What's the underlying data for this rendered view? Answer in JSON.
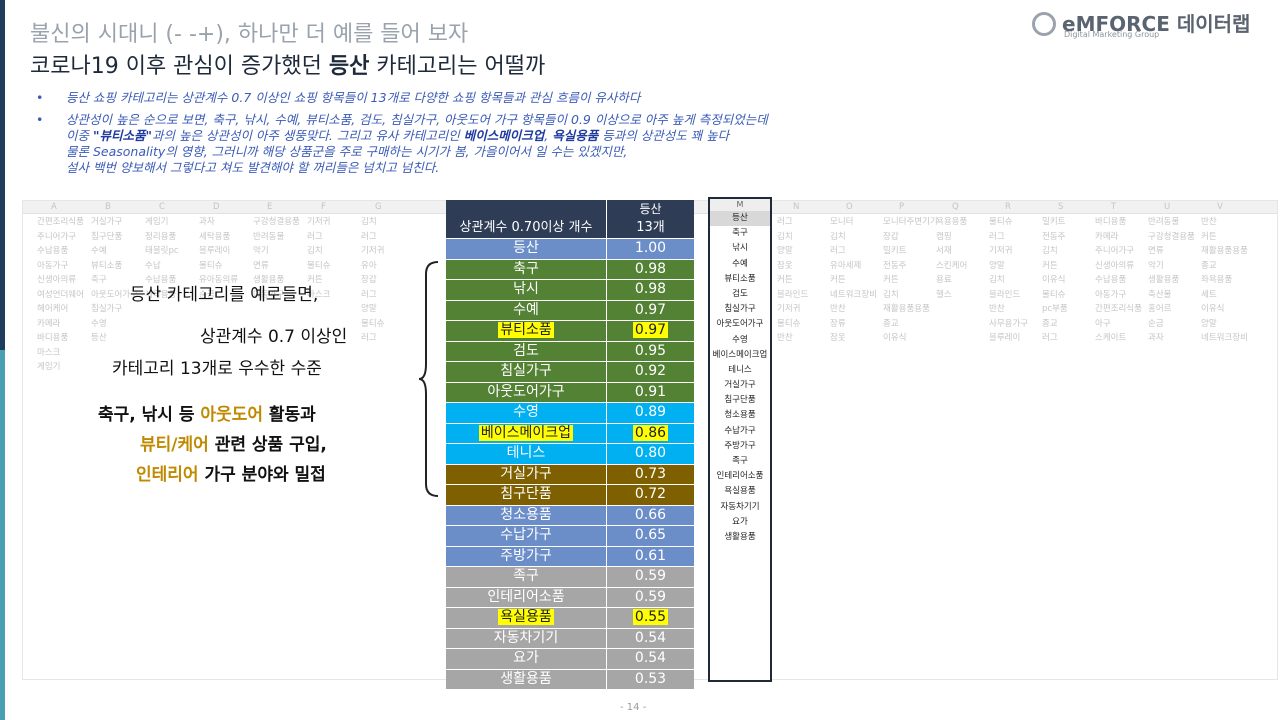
{
  "header": {
    "title_line1": "불신의 시대니 (- -+), 하나만 더 예를 들어 보자",
    "title_line2_pre": "코로나19 이후 관심이 증가했던 ",
    "title_line2_bold": "등산",
    "title_line2_post": " 카테고리는 어떨까"
  },
  "logo": {
    "name": "eMFORCE 데이터랩",
    "sub": "Digital Marketing Group"
  },
  "bullets": {
    "b1": "등산 쇼핑 카테고리는 상관계수 0.7 이상인 쇼핑 항목들이 13개로 다양한 쇼핑 항목들과 관심 흐름이 유사하다",
    "b2_l1": "상관성이 높은 순으로 보면, 축구, 낚시, 수예, 뷰티소품, 검도, 침실가구, 아웃도어 가구 항목들이 0.9 이상으로 아주 높게 측정되었는데",
    "b2_l2_a": "이중 ",
    "b2_l2_b": "\"뷰티소품\"",
    "b2_l2_c": "과의 높은 상관성이 아주 생뚱맞다. 그리고 유사 카테고리인 ",
    "b2_l2_d": "베이스메이크업",
    "b2_l2_e": ", ",
    "b2_l2_f": "욕실용품",
    "b2_l2_g": " 등과의 상관성도 꽤 높다",
    "b2_l3": "물론 Seasonality의 영향, 그러니까 해당 상품군을 주로 구매하는 시기가 봄, 가을이어서 일 수는 있겠지만,",
    "b2_l4": "설사 백번 양보해서 그렇다고 쳐도 발견해야 할 꺼리들은 넘치고 넘친다."
  },
  "callouts": {
    "c1": "등산 카테고리를 예로들면,",
    "c2": "상관계수 0.7 이상인",
    "c3": "카테고리 13개로 우수한 수준",
    "c4_pre": "축구, 낚시 등 ",
    "c4_hl": "아웃도어",
    "c4_post": " 활동과",
    "c5_hl": "뷰티/케어",
    "c5_post": " 관련 상품 구입,",
    "c6_hl": "인테리어",
    "c6_post": " 가구 분야와 밀접"
  },
  "table": {
    "col_header": "등산",
    "count_label": "상관계수 0.70이상 개수",
    "count_value": "13개",
    "rows": [
      {
        "name": "등산",
        "value": "1.00",
        "color": "#6b8ec9",
        "hl": false
      },
      {
        "name": "축구",
        "value": "0.98",
        "color": "#548235",
        "hl": false
      },
      {
        "name": "낚시",
        "value": "0.98",
        "color": "#548235",
        "hl": false
      },
      {
        "name": "수예",
        "value": "0.97",
        "color": "#548235",
        "hl": false
      },
      {
        "name": "뷰티소품",
        "value": "0.97",
        "color": "#548235",
        "hl": true
      },
      {
        "name": "검도",
        "value": "0.95",
        "color": "#548235",
        "hl": false
      },
      {
        "name": "침실가구",
        "value": "0.92",
        "color": "#548235",
        "hl": false
      },
      {
        "name": "아웃도어가구",
        "value": "0.91",
        "color": "#548235",
        "hl": false
      },
      {
        "name": "수영",
        "value": "0.89",
        "color": "#00b0f0",
        "hl": false
      },
      {
        "name": "베이스메이크업",
        "value": "0.86",
        "color": "#00b0f0",
        "hl": true
      },
      {
        "name": "테니스",
        "value": "0.80",
        "color": "#00b0f0",
        "hl": false
      },
      {
        "name": "거실가구",
        "value": "0.73",
        "color": "#7f6000",
        "hl": false
      },
      {
        "name": "침구단품",
        "value": "0.72",
        "color": "#7f6000",
        "hl": false
      },
      {
        "name": "청소용품",
        "value": "0.66",
        "color": "#6b8ec9",
        "hl": false
      },
      {
        "name": "수납가구",
        "value": "0.65",
        "color": "#6b8ec9",
        "hl": false
      },
      {
        "name": "주방가구",
        "value": "0.61",
        "color": "#6b8ec9",
        "hl": false
      },
      {
        "name": "족구",
        "value": "0.59",
        "color": "#a6a6a6",
        "hl": false
      },
      {
        "name": "인테리어소품",
        "value": "0.59",
        "color": "#a6a6a6",
        "hl": false
      },
      {
        "name": "욕실용품",
        "value": "0.55",
        "color": "#a6a6a6",
        "hl": true
      },
      {
        "name": "자동차기기",
        "value": "0.54",
        "color": "#a6a6a6",
        "hl": false
      },
      {
        "name": "요가",
        "value": "0.54",
        "color": "#a6a6a6",
        "hl": false
      },
      {
        "name": "생활용품",
        "value": "0.53",
        "color": "#a6a6a6",
        "hl": false
      }
    ]
  },
  "m_column": {
    "header": "M",
    "items": [
      "등산",
      "축구",
      "낚시",
      "수예",
      "뷰티소품",
      "검도",
      "침실가구",
      "아웃도어가구",
      "수영",
      "베이스메이크업",
      "테니스",
      "거실가구",
      "침구단품",
      "청소용품",
      "수납가구",
      "주방가구",
      "족구",
      "인테리어소품",
      "욕실용품",
      "자동차기기",
      "요가",
      "생활용품"
    ]
  },
  "bg_sheet": {
    "left_cols": [
      "A",
      "B",
      "C",
      "D",
      "E",
      "F",
      "G"
    ],
    "right_cols": [
      "N",
      "O",
      "P",
      "Q",
      "R",
      "S",
      "T",
      "U",
      "V"
    ],
    "left_rows": [
      [
        "간편조리식품",
        "거실가구",
        "게임기",
        "과자",
        "구강청결용품",
        "기저귀",
        "김치"
      ],
      [
        "주니어가구",
        "침구단품",
        "정리용품",
        "세탁용품",
        "반려동물",
        "러그",
        "러그"
      ],
      [
        "수납용품",
        "수예",
        "태블릿pc",
        "블루레이",
        "악기",
        "김치",
        "기저귀"
      ],
      [
        "아동가구",
        "뷰티소품",
        "수납",
        "물티슈",
        "면류",
        "물티슈",
        "유아"
      ],
      [
        "신생아의류",
        "축구",
        "수납용품",
        "유아동의류",
        "생활용품",
        "커튼",
        "장갑"
      ],
      [
        "여성언더웨어",
        "아웃도어가구",
        "세탁용품",
        "순금",
        "아동가구",
        "마스크",
        "러그"
      ],
      [
        "헤어케어",
        "침실가구",
        "",
        "",
        "",
        "",
        "양말"
      ],
      [
        "카메라",
        "수영",
        "",
        "",
        "",
        "",
        "물티슈"
      ],
      [
        "바디용품",
        "등산",
        "",
        "",
        "",
        "",
        "러그"
      ],
      [
        "마스크",
        "",
        "",
        "",
        "",
        "",
        ""
      ],
      [
        "게임기",
        "",
        "",
        "",
        "",
        "",
        ""
      ]
    ],
    "right_rows": [
      [
        "러그",
        "모니터",
        "모니터주변기기",
        "욕용용품",
        "물티슈",
        "밀키트",
        "바디용품",
        "반려동물",
        "반찬"
      ],
      [
        "김치",
        "김치",
        "장갑",
        "캠핑",
        "러그",
        "전동주",
        "카메라",
        "구강청결용품",
        "커튼"
      ],
      [
        "양말",
        "러그",
        "밀키트",
        "서재",
        "기저귀",
        "김치",
        "주니어가구",
        "면류",
        "재활용품용품"
      ],
      [
        "잠옷",
        "유아세제",
        "전동주",
        "스킨케어",
        "양말",
        "커튼",
        "신생아의류",
        "악기",
        "종교"
      ],
      [
        "커튼",
        "커튼",
        "커튼",
        "용료",
        "김치",
        "이유식",
        "수납용품",
        "생활용품",
        "좌욕용품"
      ],
      [
        "블라인드",
        "네트워크장비",
        "김치",
        "헬스",
        "블라인드",
        "물티슈",
        "아동가구",
        "축산물",
        "세트"
      ],
      [
        "기저귀",
        "반찬",
        "재활용품용품",
        "",
        "반찬",
        "pc부품",
        "간편조리식품",
        "홍어르",
        "이유식"
      ],
      [
        "물티슈",
        "장류",
        "종교",
        "",
        "사무용가구",
        "종교",
        "아구",
        "순금",
        "양말"
      ],
      [
        "반찬",
        "잠옷",
        "이유식",
        "",
        "블루레이",
        "러그",
        "스케이트",
        "과자",
        "네트워크장비"
      ]
    ]
  },
  "page_number": "- 14 -"
}
